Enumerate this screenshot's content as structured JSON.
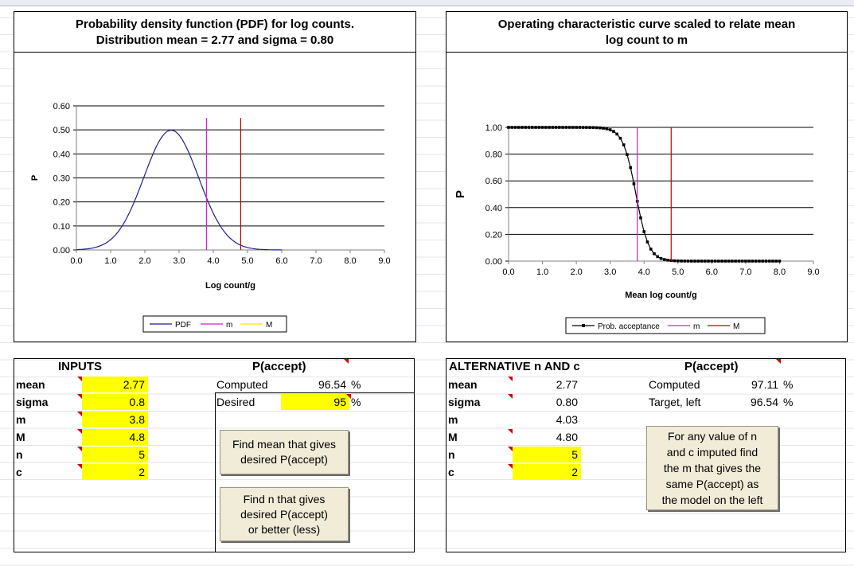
{
  "pdf_panel": {
    "title_line1": "Probability density function (PDF) for log counts.",
    "title_line2": "Distribution mean = 2.77 and sigma = 0.80"
  },
  "oc_panel": {
    "title_line1": "Operating characteristic curve scaled to relate mean",
    "title_line2": "log count to m"
  },
  "chart_data": [
    {
      "type": "line",
      "title": "Probability density function (PDF) for log counts. Distribution mean = 2.77 and sigma = 0.80",
      "xlabel": "Log count/g",
      "ylabel": "P",
      "xlim": [
        0,
        9
      ],
      "ylim": [
        0,
        0.6
      ],
      "x_ticks": [
        "0.0",
        "1.0",
        "2.0",
        "3.0",
        "4.0",
        "5.0",
        "6.0",
        "7.0",
        "8.0",
        "9.0"
      ],
      "y_ticks": [
        "0.00",
        "0.10",
        "0.20",
        "0.30",
        "0.40",
        "0.50",
        "0.60"
      ],
      "grid": true,
      "legend_position": "bottom",
      "series": [
        {
          "name": "PDF",
          "color": "#1f1f8f",
          "mean": 2.77,
          "sigma": 0.8,
          "x": [
            0.0,
            0.5,
            1.0,
            1.5,
            2.0,
            2.5,
            2.77,
            3.0,
            3.5,
            4.0,
            4.5,
            5.0,
            5.5,
            6.0
          ],
          "y": [
            0.0,
            0.01,
            0.04,
            0.14,
            0.31,
            0.47,
            0.5,
            0.48,
            0.33,
            0.15,
            0.05,
            0.01,
            0.0,
            0.0
          ]
        },
        {
          "name": "m",
          "color": "#d020d0",
          "x": [
            3.8,
            3.8
          ],
          "y": [
            0,
            0.55
          ]
        },
        {
          "name": "M",
          "color": "#ffe000",
          "x": [
            4.8,
            4.8
          ],
          "y": [
            0,
            0.55
          ]
        }
      ],
      "extra_line": {
        "color": "#c00000",
        "x": [
          4.8,
          4.8
        ],
        "y": [
          0,
          0.55
        ]
      }
    },
    {
      "type": "line",
      "title": "Operating characteristic curve scaled to relate mean log count to m",
      "xlabel": "Mean log count/g",
      "ylabel": "P",
      "xlim": [
        0,
        9
      ],
      "ylim": [
        0,
        1.0
      ],
      "x_ticks": [
        "0.0",
        "1.0",
        "2.0",
        "3.0",
        "4.0",
        "5.0",
        "6.0",
        "7.0",
        "8.0",
        "9.0"
      ],
      "y_ticks": [
        "0.00",
        "0.20",
        "0.40",
        "0.60",
        "0.80",
        "1.00"
      ],
      "grid": true,
      "legend_position": "bottom",
      "series": [
        {
          "name": "Prob. acceptance",
          "color": "#000000",
          "center": 3.76,
          "scale": 0.19,
          "x_start": 0.0,
          "x_end": 8.0,
          "step": 0.1
        },
        {
          "name": "m",
          "color": "#d020d0",
          "x": [
            3.8,
            3.8
          ],
          "y": [
            0,
            1.0
          ]
        },
        {
          "name": "M",
          "color": "#c00000",
          "x": [
            4.8,
            4.8
          ],
          "y": [
            0,
            1.0
          ]
        }
      ]
    }
  ],
  "inputs": {
    "header": "INPUTS",
    "rows": [
      {
        "label": "mean",
        "value": "2.77"
      },
      {
        "label": "sigma",
        "value": "0.8"
      },
      {
        "label": "m",
        "value": "3.8"
      },
      {
        "label": "M",
        "value": "4.8"
      },
      {
        "label": "n",
        "value": "5"
      },
      {
        "label": "c",
        "value": "2"
      }
    ],
    "paccept_header": "P(accept)",
    "computed_label": "Computed",
    "computed_value": "96.54",
    "desired_label": "Desired",
    "desired_value": "95",
    "pct": "%",
    "btn_find_mean": "Find mean that gives\ndesired P(accept)",
    "btn_find_n": "Find n that gives\ndesired P(accept)\nor better (less)"
  },
  "alternative": {
    "header": "ALTERNATIVE n AND c",
    "rows": [
      {
        "label": "mean",
        "value": "2.77"
      },
      {
        "label": "sigma",
        "value": "0.80"
      },
      {
        "label": "m",
        "value": "4.03"
      },
      {
        "label": "M",
        "value": "4.80"
      },
      {
        "label": "n",
        "value": "5"
      },
      {
        "label": "c",
        "value": "2"
      }
    ],
    "paccept_header": "P(accept)",
    "computed_label": "Computed",
    "computed_value": "97.11",
    "target_label": "Target, left",
    "target_value": "96.54",
    "pct": "%",
    "btn_note": "For any value of n\nand c imputed find\nthe m that gives the\nsame P(accept) as\nthe model on the left"
  }
}
